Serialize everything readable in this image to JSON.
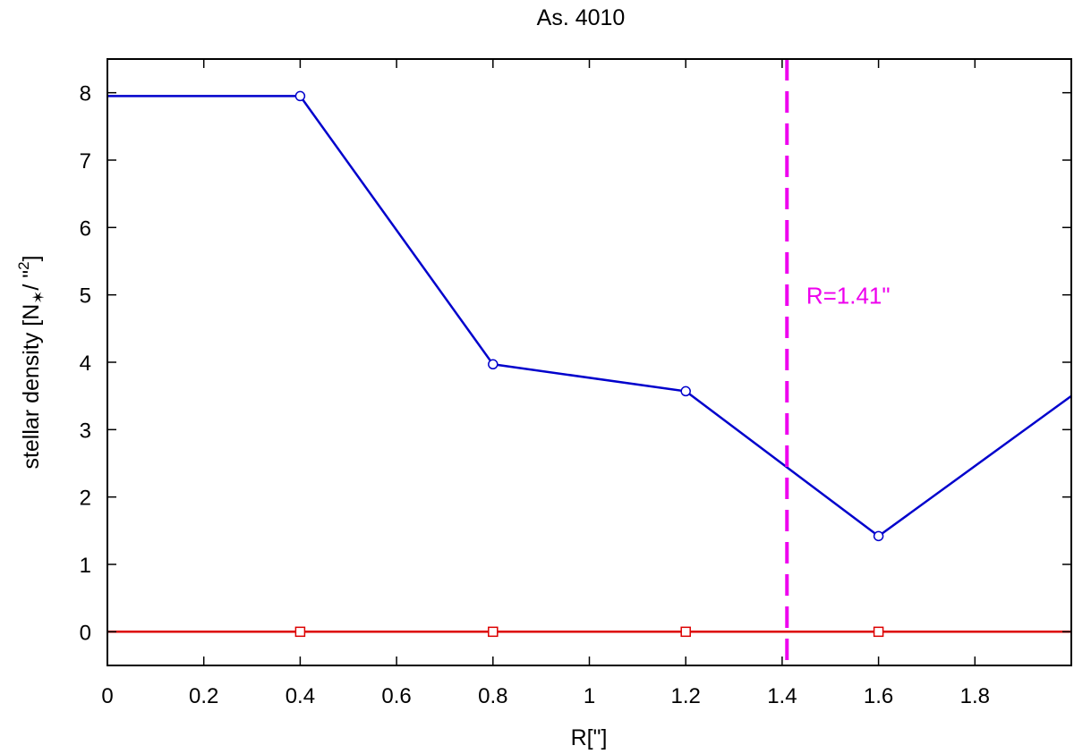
{
  "chart_data": {
    "type": "line",
    "title": "As. 4010",
    "xlabel": "R[\"]",
    "ylabel": "stellar density [N",
    "ylabel_sub": "✶",
    "ylabel_tail": "/ \"",
    "ylabel_sup": "2",
    "ylabel_end": "]",
    "xlim": [
      0,
      2.0
    ],
    "ylim": [
      -0.5,
      8.5
    ],
    "x_ticks": [
      "0",
      "0.2",
      "0.4",
      "0.6",
      "0.8",
      "1",
      "1.2",
      "1.4",
      "1.6",
      "1.8"
    ],
    "y_ticks": [
      "0",
      "1",
      "2",
      "3",
      "4",
      "5",
      "6",
      "7",
      "8"
    ],
    "grid": false,
    "series": [
      {
        "color": "#0000cc",
        "marker": "circle",
        "x": [
          0.0,
          0.4,
          0.8,
          1.2,
          1.6,
          2.0
        ],
        "y": [
          7.95,
          7.95,
          3.97,
          3.57,
          1.42,
          3.5
        ],
        "marker_indices": [
          1,
          2,
          3,
          4
        ]
      },
      {
        "color": "#dd0000",
        "marker": "square",
        "x": [
          0.0,
          0.4,
          0.8,
          1.2,
          1.6,
          2.0
        ],
        "y": [
          0,
          0,
          0,
          0,
          0,
          0
        ],
        "marker_indices": [
          1,
          2,
          3,
          4
        ]
      }
    ],
    "vline": {
      "x": 1.41,
      "color": "#ee00ee",
      "style": "dashed"
    },
    "annotation": {
      "text": "R=1.41\"",
      "x": 1.45,
      "y": 5.0,
      "color": "#ee00ee"
    }
  }
}
